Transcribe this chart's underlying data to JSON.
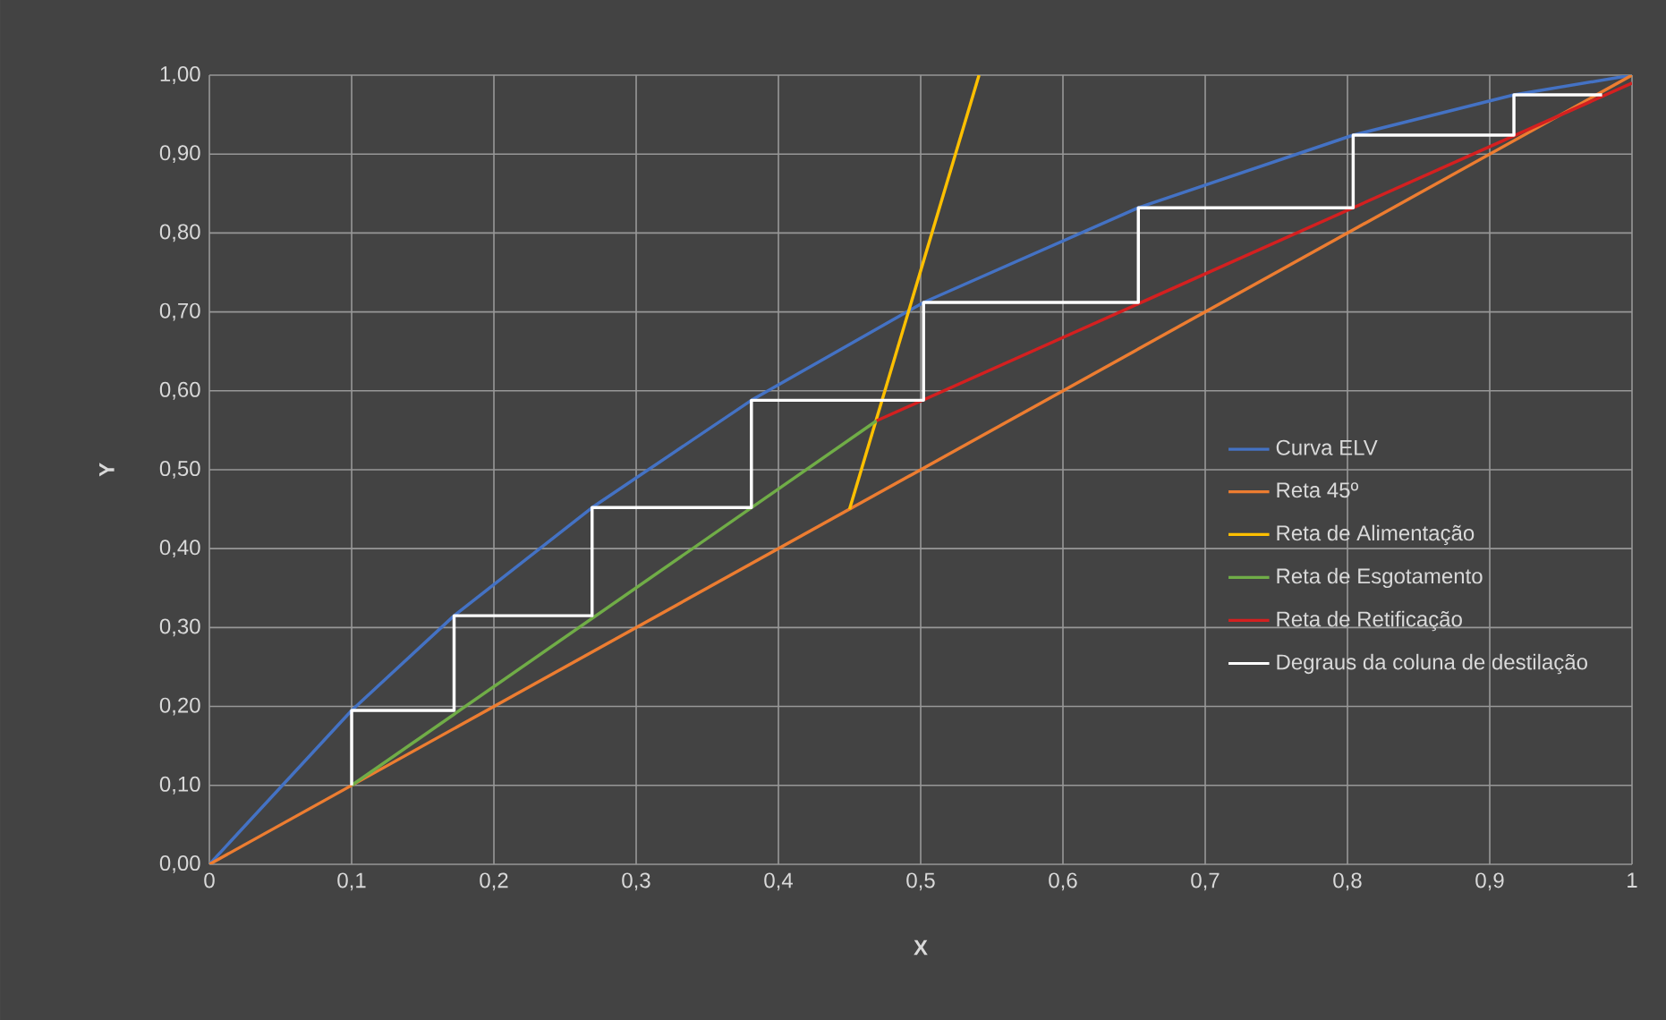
{
  "chart_data": {
    "type": "line",
    "xlabel": "X",
    "ylabel": "Y",
    "xlim": [
      0,
      1
    ],
    "ylim": [
      0,
      1
    ],
    "xticks": [
      0,
      {
        "value": 0.1,
        "label": "0,1"
      },
      {
        "value": 0.2,
        "label": "0,2"
      },
      {
        "value": 0.3,
        "label": "0,3"
      },
      {
        "value": 0.4,
        "label": "0,4"
      },
      {
        "value": 0.5,
        "label": "0,5"
      },
      {
        "value": 0.6,
        "label": "0,6"
      },
      {
        "value": 0.7,
        "label": "0,7"
      },
      {
        "value": 0.8,
        "label": "0,8"
      },
      {
        "value": 0.9,
        "label": "0,9"
      },
      1
    ],
    "yticks": [
      {
        "value": 0,
        "label": "0,00"
      },
      {
        "value": 0.1,
        "label": "0,10"
      },
      {
        "value": 0.2,
        "label": "0,20"
      },
      {
        "value": 0.3,
        "label": "0,30"
      },
      {
        "value": 0.4,
        "label": "0,40"
      },
      {
        "value": 0.5,
        "label": "0,50"
      },
      {
        "value": 0.6,
        "label": "0,60"
      },
      {
        "value": 0.7,
        "label": "0,70"
      },
      {
        "value": 0.8,
        "label": "0,80"
      },
      {
        "value": 0.9,
        "label": "0,90"
      },
      {
        "value": 1,
        "label": "1,00"
      }
    ],
    "grid": true,
    "legend": "right",
    "marker": "none",
    "line_style": "solid",
    "series": [
      {
        "name": "Curva ELV",
        "color": "#4472c4",
        "x": [
          0,
          0.1,
          0.172,
          0.269,
          0.381,
          0.502,
          0.653,
          0.804,
          0.917,
          1
        ],
        "values": [
          0,
          0.195,
          0.315,
          0.452,
          0.588,
          0.712,
          0.832,
          0.924,
          0.975,
          1
        ]
      },
      {
        "name": "Reta 45º",
        "color": "#ed7d31",
        "x": [
          0,
          1
        ],
        "values": [
          0,
          1
        ]
      },
      {
        "name": "Reta de Alimentação",
        "color": "#ffc000",
        "x": [
          0.45,
          0.541
        ],
        "values": [
          0.45,
          1
        ]
      },
      {
        "name": "Reta de Esgotamento",
        "color": "#70ad47",
        "x": [
          0.1,
          0.469
        ],
        "values": [
          0.1,
          0.562
        ]
      },
      {
        "name": "Reta de Retificação",
        "color": "#d42020",
        "x": [
          0.469,
          1
        ],
        "values": [
          0.562,
          0.99
        ]
      },
      {
        "name": "Degraus da coluna de destilação",
        "color": "#ffffff",
        "x": [
          0.1,
          0.1,
          0.172,
          0.172,
          0.269,
          0.269,
          0.381,
          0.381,
          0.502,
          0.502,
          0.653,
          0.653,
          0.804,
          0.804,
          0.917,
          0.917,
          0.979
        ],
        "values": [
          0.1,
          0.195,
          0.195,
          0.315,
          0.315,
          0.452,
          0.452,
          0.588,
          0.588,
          0.712,
          0.712,
          0.832,
          0.832,
          0.924,
          0.924,
          0.975,
          0.975
        ]
      }
    ]
  }
}
